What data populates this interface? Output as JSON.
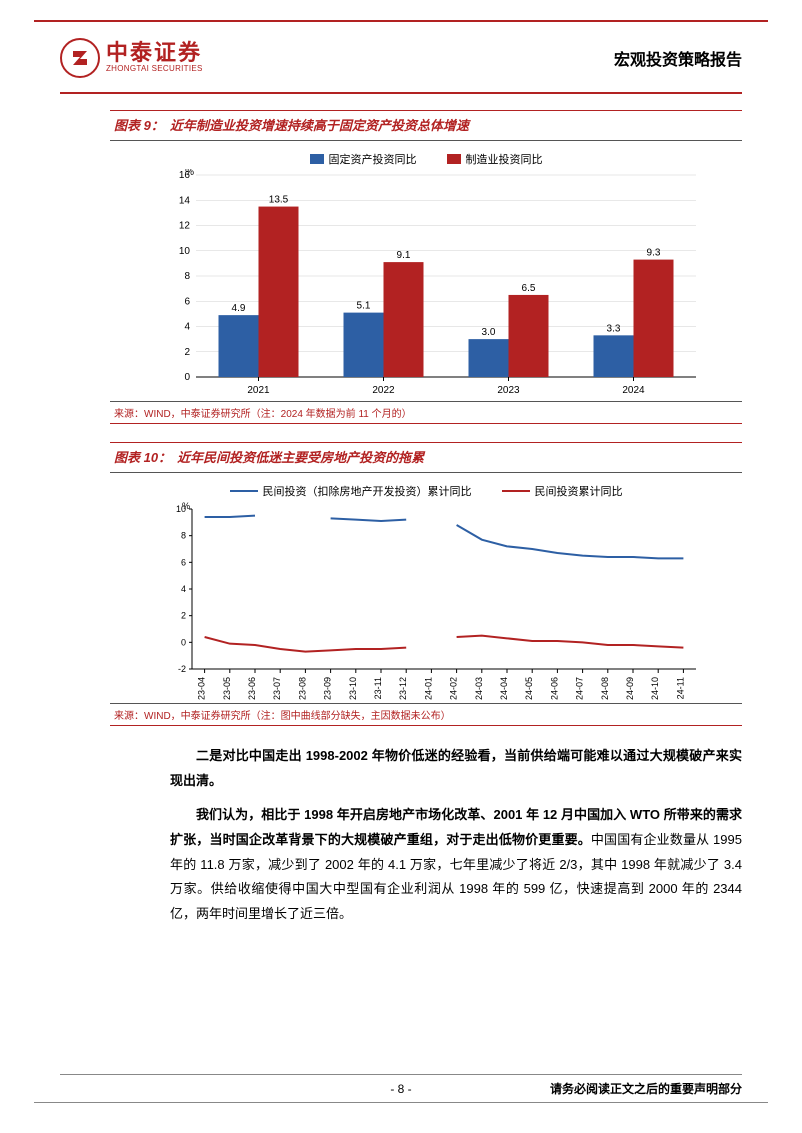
{
  "header": {
    "logo_cn": "中泰证券",
    "logo_en": "ZHONGTAI SECURITIES",
    "title": "宏观投资策略报告"
  },
  "chart9": {
    "type": "bar",
    "title_prefix": "图表 9：",
    "title": "近年制造业投资增速持续高于固定资产投资总体增速",
    "y_unit": "%",
    "ylim": [
      0,
      16
    ],
    "ytick_step": 2,
    "categories": [
      "2021",
      "2022",
      "2023",
      "2024"
    ],
    "series": [
      {
        "name": "固定资产投资同比",
        "color": "#2d5fa4",
        "values": [
          4.9,
          5.1,
          3.0,
          3.3
        ]
      },
      {
        "name": "制造业投资同比",
        "color": "#b22222",
        "values": [
          13.5,
          9.1,
          6.5,
          9.3
        ]
      }
    ],
    "bar_width": 0.32,
    "label_fontsize": 10,
    "axis_color": "#000000",
    "grid_color": "#d0d0d0",
    "source": "来源：WIND，中泰证券研究所（注：2024 年数据为前 11 个月的）"
  },
  "chart10": {
    "type": "line",
    "title_prefix": "图表 10：",
    "title": "近年民间投资低迷主要受房地产投资的拖累",
    "y_unit": "%",
    "ylim": [
      -2,
      10
    ],
    "ytick_step": 2,
    "x_labels": [
      "23-04",
      "23-05",
      "23-06",
      "23-07",
      "23-08",
      "23-09",
      "23-10",
      "23-11",
      "23-12",
      "24-01",
      "24-02",
      "24-03",
      "24-04",
      "24-05",
      "24-06",
      "24-07",
      "24-08",
      "24-09",
      "24-10",
      "24-11"
    ],
    "series": [
      {
        "name": "民间投资（扣除房地产开发投资）累计同比",
        "color": "#2d5fa4",
        "line_width": 2,
        "values": [
          9.4,
          9.4,
          9.5,
          null,
          null,
          9.3,
          9.2,
          9.1,
          9.2,
          null,
          8.8,
          7.7,
          7.2,
          7.0,
          6.7,
          6.5,
          6.4,
          6.4,
          6.3,
          6.3
        ]
      },
      {
        "name": "民间投资累计同比",
        "color": "#b22222",
        "line_width": 2,
        "values": [
          0.4,
          -0.1,
          -0.2,
          -0.5,
          -0.7,
          -0.6,
          -0.5,
          -0.5,
          -0.4,
          null,
          0.4,
          0.5,
          0.3,
          0.1,
          0.1,
          0.0,
          -0.2,
          -0.2,
          -0.3,
          -0.4
        ]
      }
    ],
    "axis_color": "#000000",
    "label_fontsize": 9,
    "source": "来源：WIND，中泰证券研究所（注：图中曲线部分缺失，主因数据未公布）"
  },
  "paragraphs": {
    "p1_bold": "二是对比中国走出 1998-2002 年物价低迷的经验看，当前供给端可能难以通过大规模破产来实现出清。",
    "p2_bold": "我们认为，相比于 1998 年开启房地产市场化改革、2001 年 12 月中国加入 WTO 所带来的需求扩张，当时国企改革背景下的大规模破产重组，对于走出低物价更重要。",
    "p2_rest": "中国国有企业数量从 1995 年的 11.8 万家，减少到了 2002 年的 4.1 万家，七年里减少了将近 2/3，其中 1998 年就减少了 3.4 万家。供给收缩使得中国大中型国有企业利润从 1998 年的 599 亿，快速提高到 2000 年的 2344 亿，两年时间里增长了近三倍。"
  },
  "footer": {
    "page": "- 8 -",
    "right": "请务必阅读正文之后的重要声明部分"
  }
}
